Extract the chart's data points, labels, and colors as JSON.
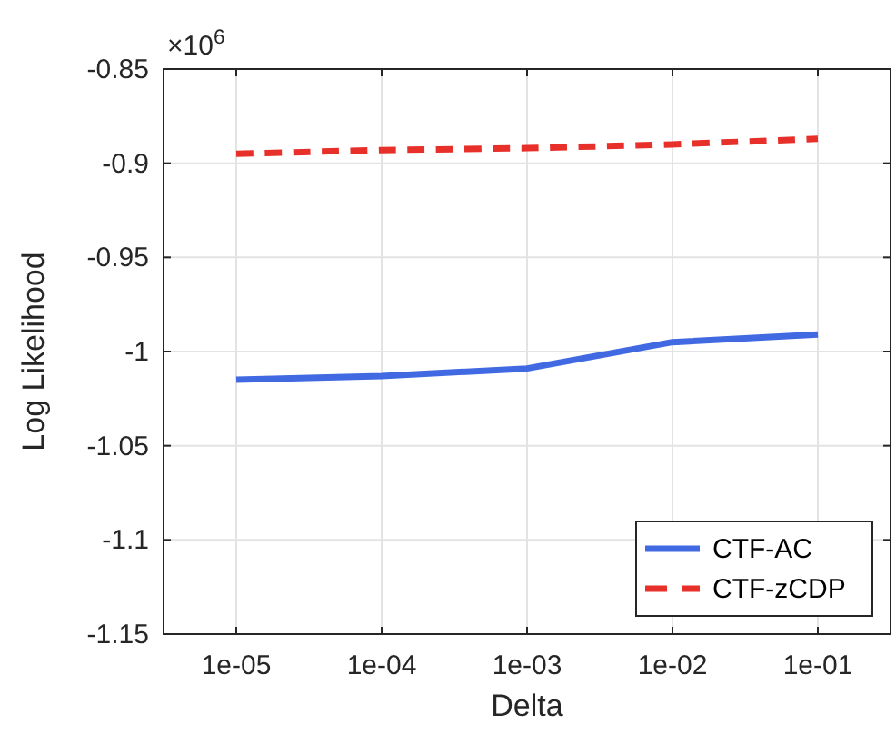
{
  "chart_data": {
    "type": "line",
    "xlabel": "Delta",
    "ylabel": "Log Likelihood",
    "annotations": [
      "×10$^{6}$"
    ],
    "categories": [
      "1e-05",
      "1e-04",
      "1e-03",
      "1e-02",
      "1e-01"
    ],
    "series": [
      {
        "name": "CTF-AC",
        "color": "#4169e1",
        "line_style": "solid",
        "values": [
          -1.015,
          -1.013,
          -1.009,
          -0.995,
          -0.991
        ]
      },
      {
        "name": "CTF-zCDP",
        "color": "#e8302a",
        "line_style": "dashed",
        "values": [
          -0.895,
          -0.893,
          -0.892,
          -0.89,
          -0.887
        ]
      }
    ],
    "ylim": [
      -1.15,
      -0.85
    ],
    "yticks": [
      -1.15,
      -1.1,
      -1.05,
      -1,
      -0.95,
      -0.9,
      -0.85
    ],
    "grid": true,
    "legend": "bottom right",
    "marker": "none"
  }
}
